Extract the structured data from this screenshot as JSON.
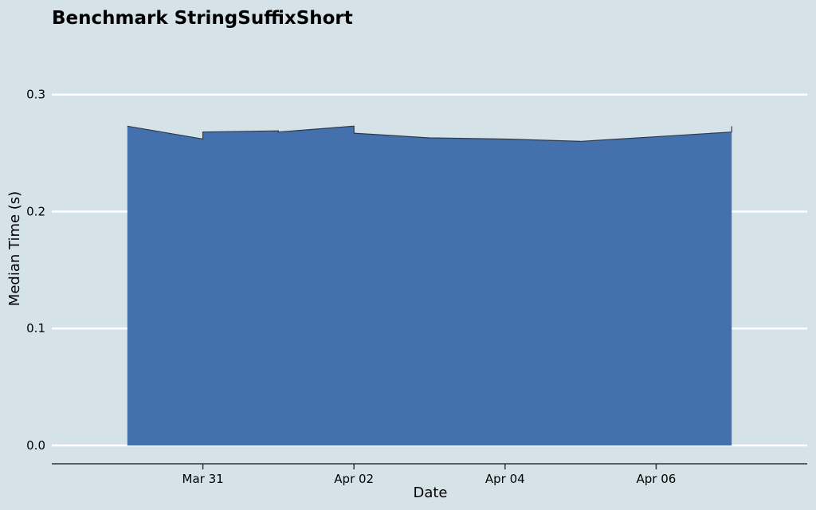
{
  "chart_data": {
    "type": "area",
    "title": "Benchmark StringSuffixShort",
    "xlabel": "Date",
    "ylabel": "Median Time (s)",
    "x": [
      "2025-03-30",
      "2025-03-31",
      "2025-03-31",
      "2025-04-01",
      "2025-04-01",
      "2025-04-02",
      "2025-04-02",
      "2025-04-03",
      "2025-04-04",
      "2025-04-05",
      "2025-04-06",
      "2025-04-07",
      "2025-04-07"
    ],
    "values": [
      0.273,
      0.262,
      0.268,
      0.269,
      0.268,
      0.273,
      0.267,
      0.263,
      0.262,
      0.26,
      0.264,
      0.268,
      0.273
    ],
    "x_ticks": [
      "2025-03-31",
      "2025-04-02",
      "2025-04-04",
      "2025-04-06"
    ],
    "x_tick_labels": [
      "Mar 31",
      "Apr 02",
      "Apr 04",
      "Apr 06"
    ],
    "y_ticks": [
      0.0,
      0.1,
      0.2,
      0.3
    ],
    "y_tick_labels": [
      "0.0",
      "0.1",
      "0.2",
      "0.3"
    ],
    "xlim": [
      "2025-03-29",
      "2025-04-08"
    ],
    "ylim": [
      0.0,
      0.34
    ],
    "grid": "horizontal",
    "colors": {
      "background": "#d5e3e9",
      "fill": "#4470ad",
      "line": "#2f3b4a",
      "grid": "#ffffff",
      "axis": "#333333"
    }
  }
}
